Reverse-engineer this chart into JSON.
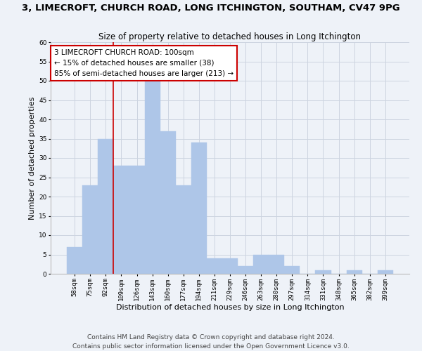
{
  "title": "3, LIMECROFT, CHURCH ROAD, LONG ITCHINGTON, SOUTHAM, CV47 9PG",
  "subtitle": "Size of property relative to detached houses in Long Itchington",
  "xlabel": "Distribution of detached houses by size in Long Itchington",
  "ylabel": "Number of detached properties",
  "footer1": "Contains HM Land Registry data © Crown copyright and database right 2024.",
  "footer2": "Contains public sector information licensed under the Open Government Licence v3.0.",
  "categories": [
    "58sqm",
    "75sqm",
    "92sqm",
    "109sqm",
    "126sqm",
    "143sqm",
    "160sqm",
    "177sqm",
    "194sqm",
    "211sqm",
    "229sqm",
    "246sqm",
    "263sqm",
    "280sqm",
    "297sqm",
    "314sqm",
    "331sqm",
    "348sqm",
    "365sqm",
    "382sqm",
    "399sqm"
  ],
  "values": [
    7,
    23,
    35,
    28,
    28,
    50,
    37,
    23,
    34,
    4,
    4,
    2,
    5,
    5,
    2,
    0,
    1,
    0,
    1,
    0,
    1
  ],
  "bar_color": "#aec6e8",
  "bar_edge_color": "#aec6e8",
  "grid_color": "#ccd4e0",
  "background_color": "#eef2f8",
  "ylim": [
    0,
    60
  ],
  "yticks": [
    0,
    5,
    10,
    15,
    20,
    25,
    30,
    35,
    40,
    45,
    50,
    55,
    60
  ],
  "red_line_color": "#cc0000",
  "annotation_text": "3 LIMECROFT CHURCH ROAD: 100sqm\n← 15% of detached houses are smaller (38)\n85% of semi-detached houses are larger (213) →",
  "annotation_box_color": "#ffffff",
  "annotation_box_edge": "#cc0000",
  "title_fontsize": 9.5,
  "subtitle_fontsize": 8.5,
  "xlabel_fontsize": 8,
  "ylabel_fontsize": 8,
  "tick_fontsize": 6.5,
  "annotation_fontsize": 7.5,
  "footer_fontsize": 6.5
}
